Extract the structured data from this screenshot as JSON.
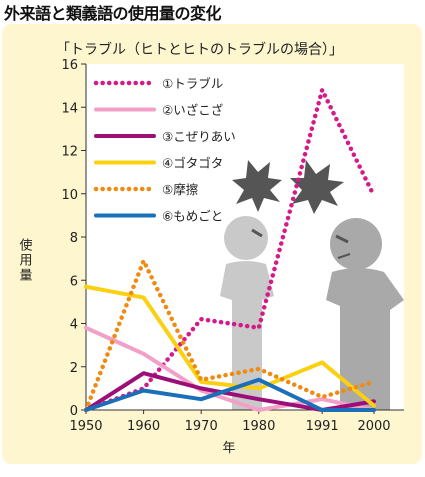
{
  "page_title": "外来語と類義語の使用量の変化",
  "chart_data": {
    "type": "line",
    "title": "「トラブル（ヒトとヒトのトラブルの場合）」",
    "xlabel": "年",
    "ylabel": "使用量",
    "x": [
      1950,
      1960,
      1970,
      1980,
      1991,
      2000
    ],
    "xlim": [
      1950,
      2000
    ],
    "ylim": [
      0,
      16
    ],
    "yticks": [
      0,
      2,
      4,
      6,
      8,
      10,
      12,
      14,
      16
    ],
    "legend_position": "top-left",
    "series": [
      {
        "name": "①トラブル",
        "color": "#d6198a",
        "style": "dotted",
        "values": [
          0,
          1.0,
          4.2,
          3.8,
          14.8,
          9.9
        ]
      },
      {
        "name": "②いざこざ",
        "color": "#f2a0c8",
        "style": "solid",
        "values": [
          3.8,
          2.6,
          0.9,
          0.0,
          0.5,
          0.0
        ]
      },
      {
        "name": "③こぜりあい",
        "color": "#9c0f78",
        "style": "solid",
        "values": [
          0,
          1.7,
          1.0,
          0.5,
          0.0,
          0.4
        ]
      },
      {
        "name": "④ゴタゴタ",
        "color": "#fbd010",
        "style": "solid",
        "values": [
          5.7,
          5.2,
          1.3,
          1.0,
          2.2,
          0.2
        ]
      },
      {
        "name": "⑤摩擦",
        "color": "#f08a10",
        "style": "dotted",
        "values": [
          0,
          6.9,
          1.4,
          1.9,
          0.6,
          1.3
        ]
      },
      {
        "name": "⑥もめごと",
        "color": "#1a6fb8",
        "style": "solid",
        "values": [
          0,
          0.9,
          0.5,
          1.4,
          0.0,
          0.0
        ]
      }
    ]
  }
}
